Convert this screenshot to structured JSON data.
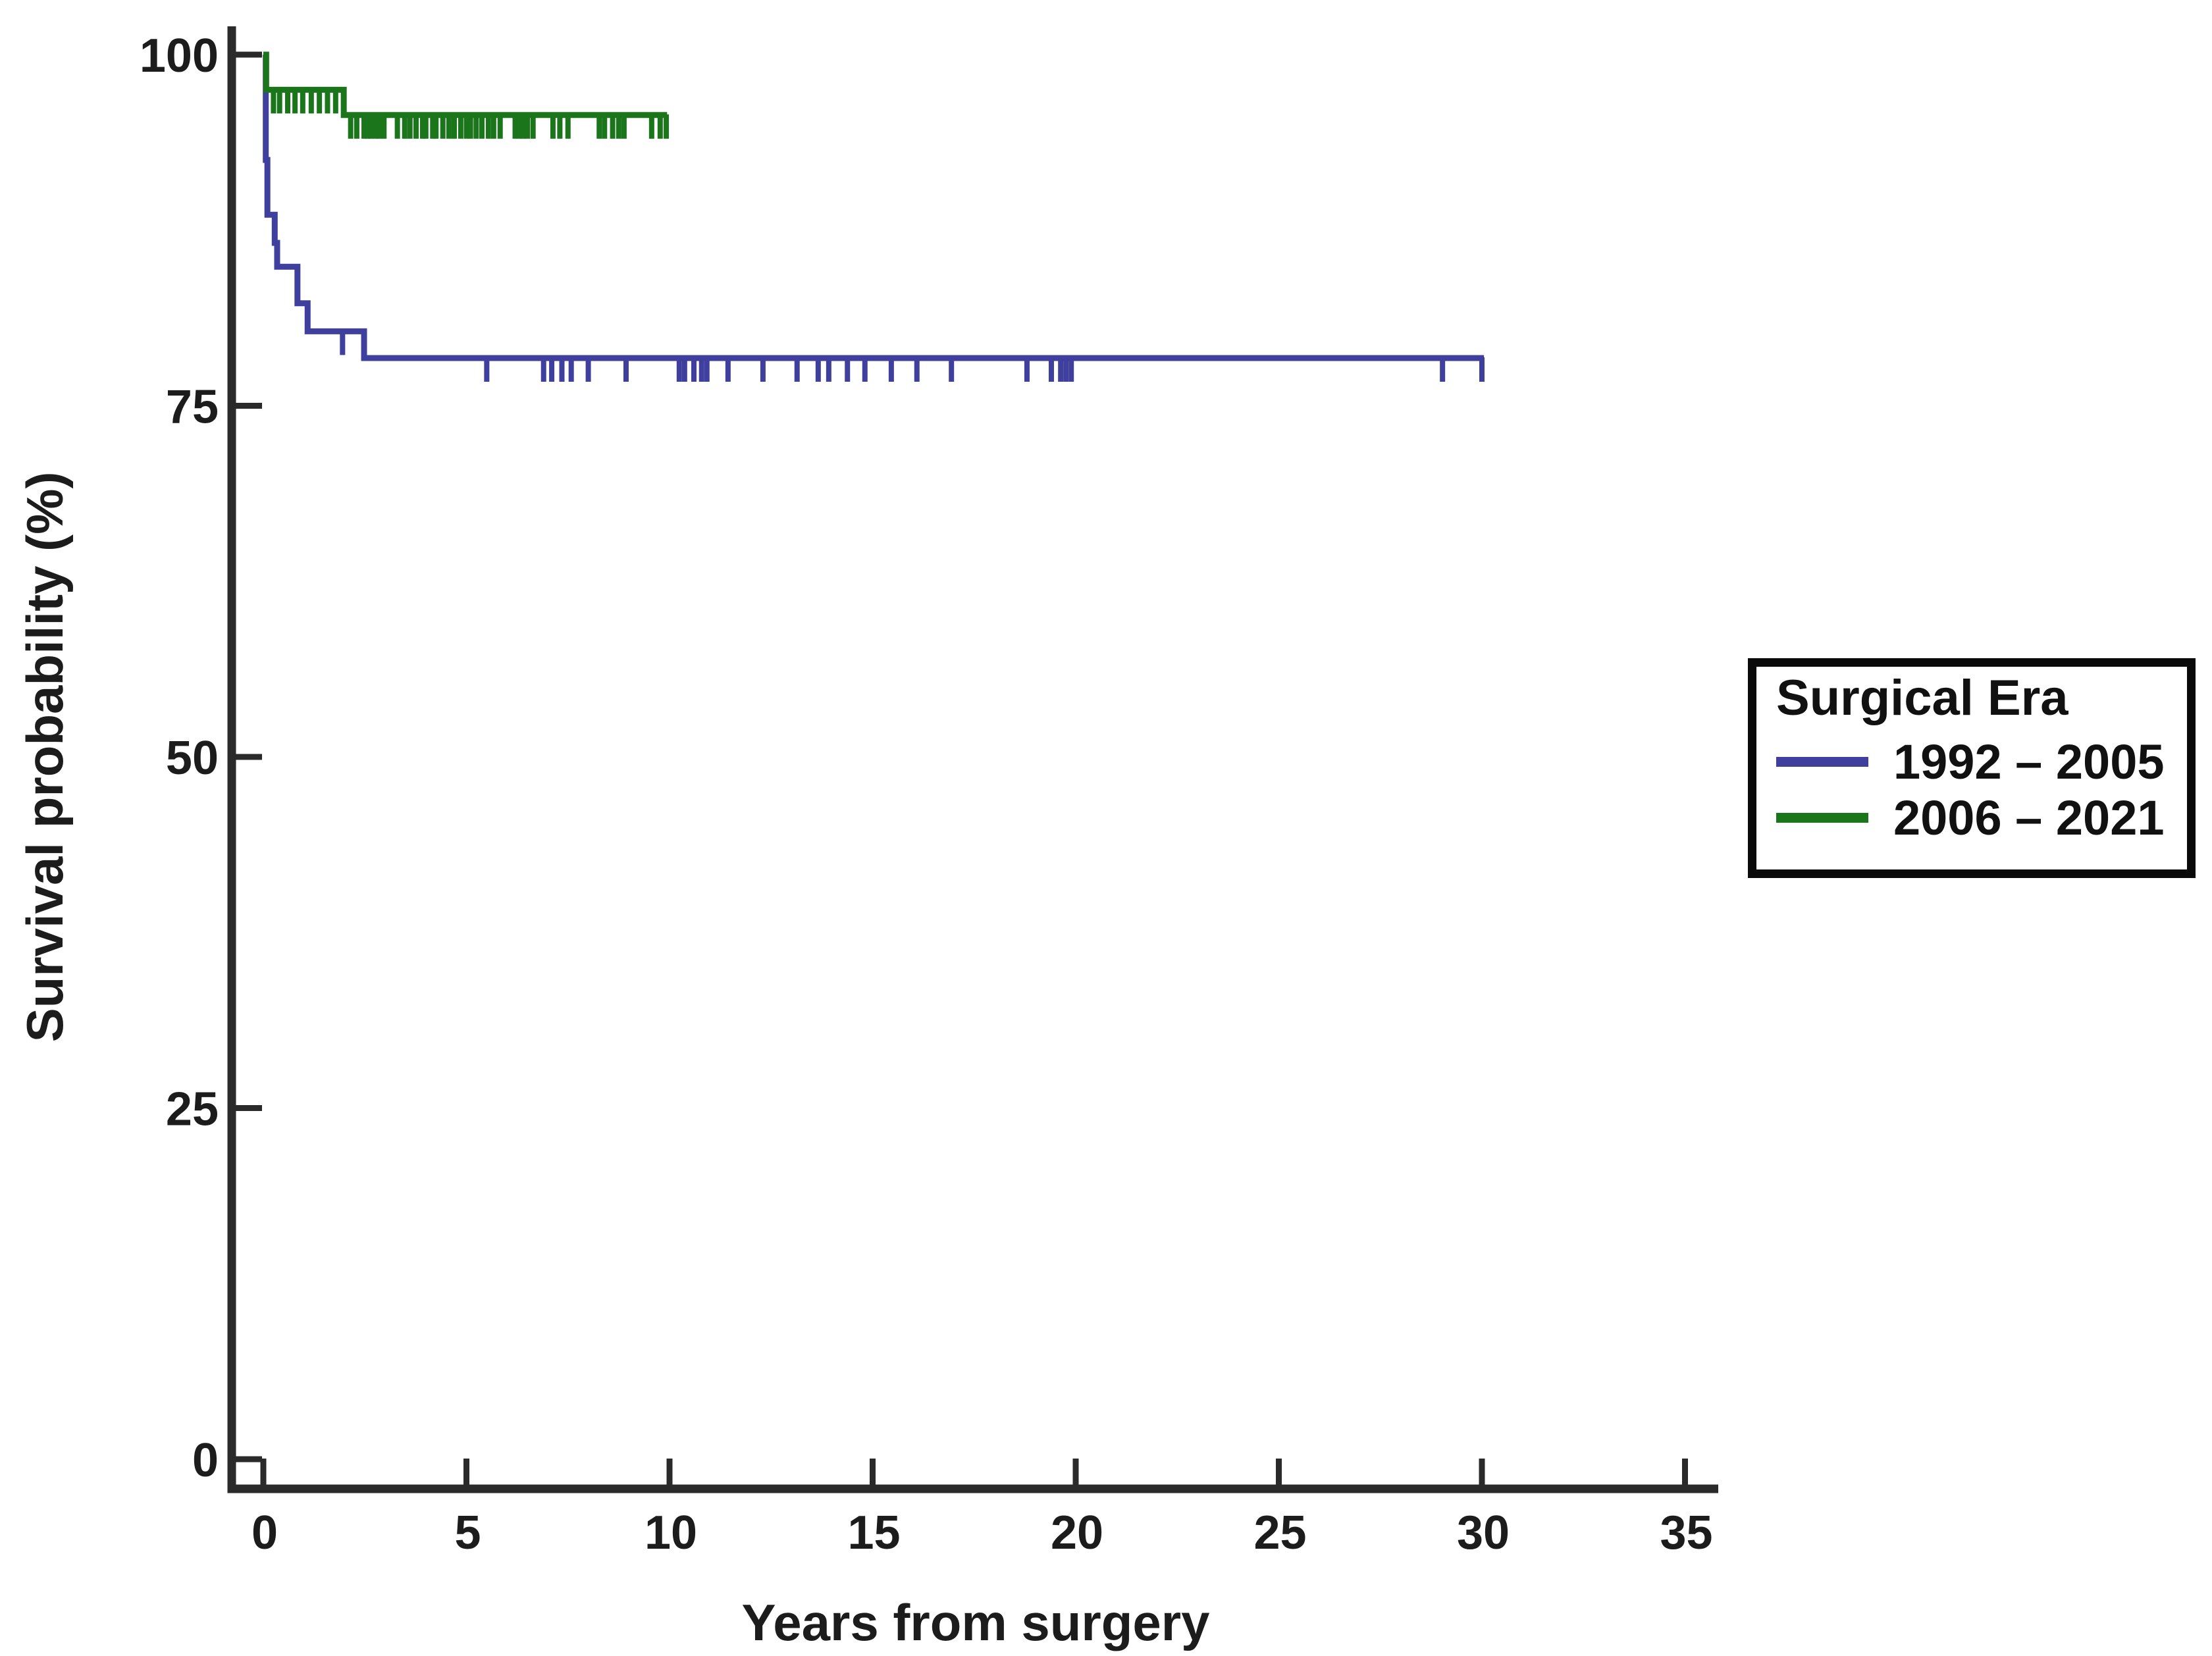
{
  "chart_data": {
    "type": "line",
    "subtype": "kaplan-meier-step",
    "title": "",
    "xlabel": "Years from surgery",
    "ylabel": "Survival probability (%)",
    "x_ticks": [
      0,
      5,
      10,
      15,
      20,
      25,
      30,
      35
    ],
    "y_ticks": [
      0,
      25,
      50,
      75,
      100
    ],
    "xlim": [
      0,
      35.8
    ],
    "ylim": [
      0,
      100
    ],
    "grid": false,
    "colors": {
      "background": "#ffffff",
      "axis": "#2a2a2a",
      "text": "#111111",
      "series_blue": "#3f3f9e",
      "series_green": "#1b751b"
    },
    "legend": {
      "title": "Surgical Era",
      "position": "middle-right",
      "border_color": "#0a0a0a",
      "entries": [
        {
          "label": "1992 – 2005",
          "color": "#3f3f9e"
        },
        {
          "label": "2006 – 2021",
          "color": "#1b751b"
        }
      ]
    },
    "series": [
      {
        "name": "1992 – 2005",
        "color": "#3f3f9e",
        "steps": [
          [
            0,
            100
          ],
          [
            0.06,
            92.5
          ],
          [
            0.1,
            88.6
          ],
          [
            0.28,
            86.6
          ],
          [
            0.34,
            84.9
          ],
          [
            0.84,
            82.3
          ],
          [
            1.09,
            80.3
          ],
          [
            2.48,
            78.4
          ]
        ],
        "end_time": 30.05,
        "final_value": 78.4,
        "censor_times": [
          1.95,
          5.5,
          6.9,
          7.1,
          7.35,
          7.58,
          8.0,
          8.93,
          10.24,
          10.37,
          10.6,
          10.79,
          10.92,
          11.44,
          12.3,
          13.14,
          13.66,
          13.92,
          14.38,
          14.81,
          15.46,
          16.09,
          16.94,
          18.8,
          19.4,
          19.63,
          19.76,
          19.89,
          29.03,
          30.0
        ]
      },
      {
        "name": "2006 – 2021",
        "color": "#1b751b",
        "steps": [
          [
            0,
            100
          ],
          [
            0.07,
            97.5
          ],
          [
            1.98,
            95.7
          ]
        ],
        "end_time": 9.94,
        "final_value": 95.7,
        "censor_times": [
          0.25,
          0.4,
          0.6,
          0.78,
          0.97,
          1.18,
          1.38,
          1.58,
          1.78,
          2.15,
          2.3,
          2.48,
          2.57,
          2.65,
          2.76,
          2.85,
          2.97,
          3.3,
          3.48,
          3.61,
          3.76,
          3.92,
          4.0,
          4.17,
          4.25,
          4.42,
          4.57,
          4.7,
          4.86,
          5.0,
          5.1,
          5.24,
          5.38,
          5.54,
          5.67,
          5.83,
          6.2,
          6.3,
          6.4,
          6.5,
          6.64,
          7.13,
          7.3,
          7.5,
          8.27,
          8.4,
          8.6,
          8.75,
          8.88,
          9.56,
          9.77,
          9.92
        ]
      }
    ]
  }
}
